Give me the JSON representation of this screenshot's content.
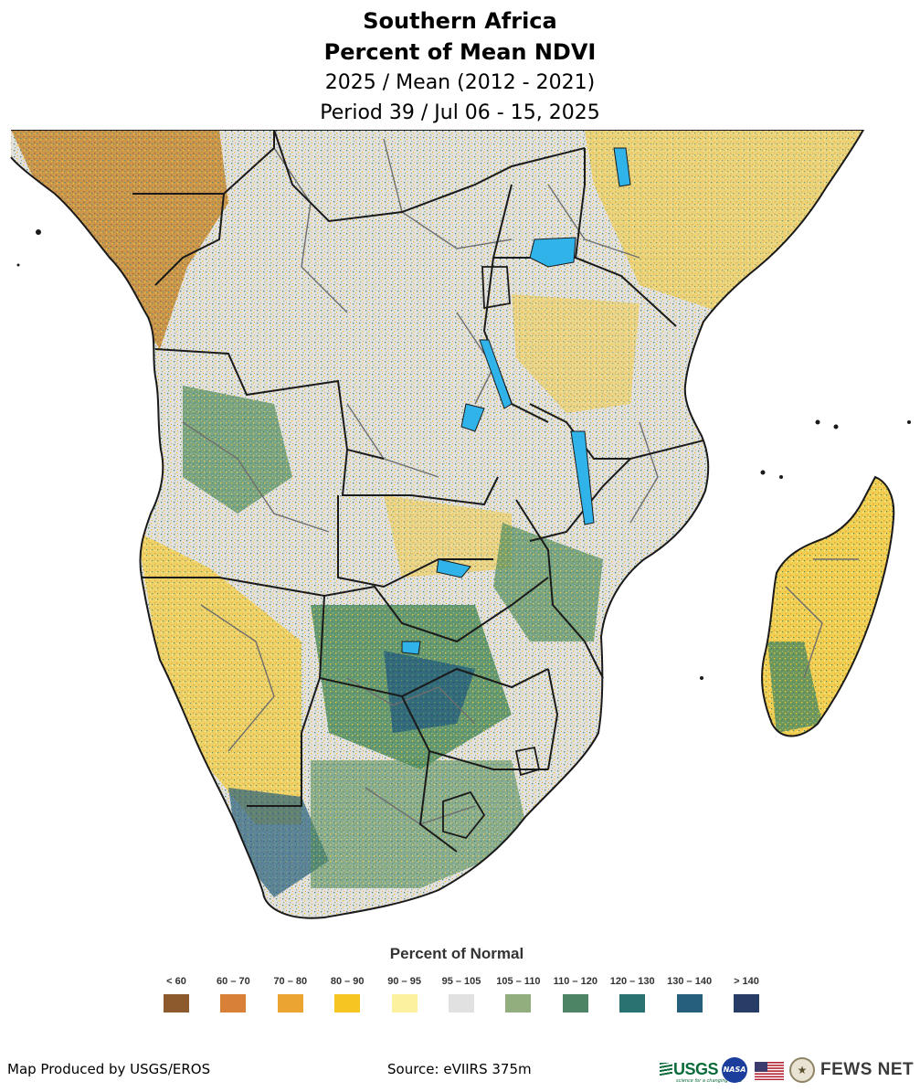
{
  "title": {
    "line1": "Southern Africa",
    "line2": "Percent of Mean NDVI",
    "line3": "2025 / Mean (2012 - 2021)",
    "line4": "Period 39 / Jul 06 - 15, 2025"
  },
  "legend": {
    "title": "Percent of Normal",
    "items": [
      {
        "label": "< 60",
        "color": "#8c5a2c"
      },
      {
        "label": "60 – 70",
        "color": "#d98038"
      },
      {
        "label": "70 – 80",
        "color": "#eba431"
      },
      {
        "label": "80 – 90",
        "color": "#f6c522"
      },
      {
        "label": "90 – 95",
        "color": "#fbf19e"
      },
      {
        "label": "95 – 105",
        "color": "#e1e1e1"
      },
      {
        "label": "105 – 110",
        "color": "#92ae7e"
      },
      {
        "label": "110 – 120",
        "color": "#4c8465"
      },
      {
        "label": "120 – 130",
        "color": "#2a7272"
      },
      {
        "label": "130 – 140",
        "color": "#255f7d"
      },
      {
        "label": "> 140",
        "color": "#273d68"
      }
    ]
  },
  "footer": {
    "produced_by": "Map Produced by USGS/EROS",
    "source": "Source: eVIIRS 375m"
  },
  "logos": {
    "usgs": "USGS",
    "usgs_tagline": "science for a changing world",
    "nasa": "NASA",
    "fews": "FEWS NET"
  },
  "colors": {
    "land_base": "#d9dccf",
    "water": "#2fb3e8",
    "border_country": "#1a1a1a",
    "border_admin": "#6e6e6e"
  }
}
